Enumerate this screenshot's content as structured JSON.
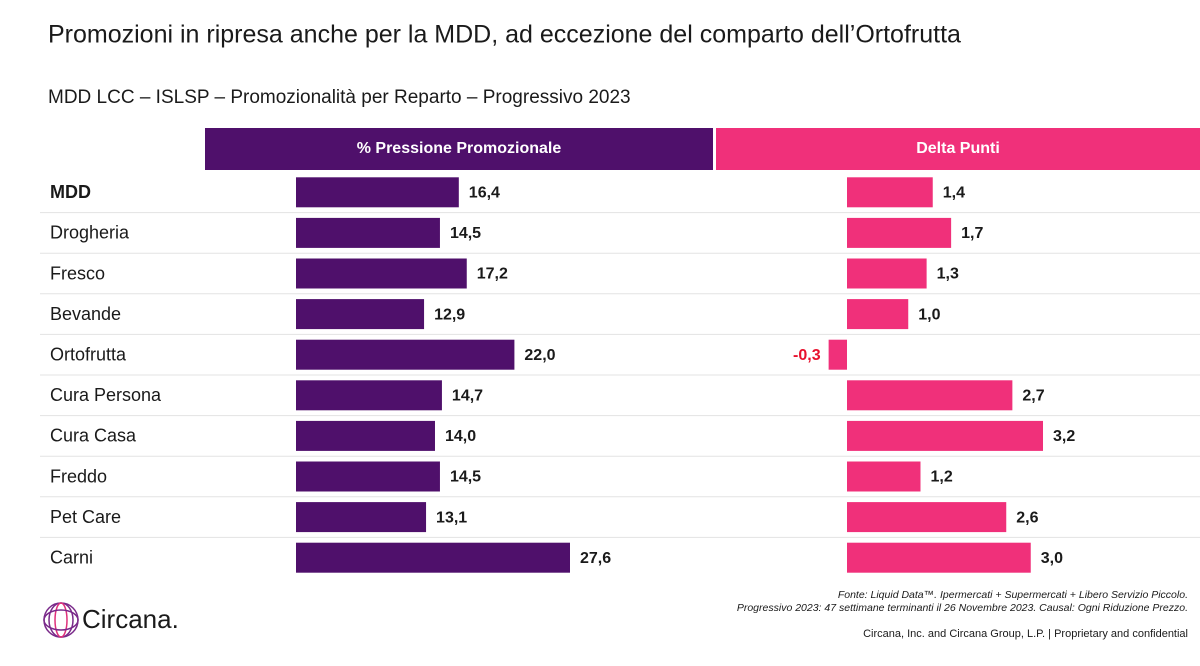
{
  "chart_data": {
    "type": "bar",
    "orientation": "horizontal",
    "title": "Promozioni in ripresa anche per la MDD, ad eccezione del comparto dell’Ortofrutta",
    "subtitle": "MDD LCC – ISLSP – Promozionalità per Reparto – Progressivo 2023",
    "categories": [
      "MDD",
      "Drogheria",
      "Fresco",
      "Bevande",
      "Ortofrutta",
      "Cura Persona",
      "Cura Casa",
      "Freddo",
      "Pet Care",
      "Carni"
    ],
    "series": [
      {
        "name": "% Pressione Promozionale",
        "color": "#4f106b",
        "values": [
          16.4,
          14.5,
          17.2,
          12.9,
          22.0,
          14.7,
          14.0,
          14.5,
          13.1,
          27.6
        ],
        "value_labels": [
          "16,4",
          "14,5",
          "17,2",
          "12,9",
          "22,0",
          "14,7",
          "14,0",
          "14,5",
          "13,1",
          "27,6"
        ]
      },
      {
        "name": "Delta Punti",
        "color": "#f0307a",
        "negative_label_color": "#e8112d",
        "values": [
          1.4,
          1.7,
          1.3,
          1.0,
          -0.3,
          2.7,
          3.2,
          1.2,
          2.6,
          3.0
        ],
        "value_labels": [
          "1,4",
          "1,7",
          "1,3",
          "1,0",
          "-0,3",
          "2,7",
          "3,2",
          "1,2",
          "2,6",
          "3,0"
        ]
      }
    ],
    "source_notes": [
      "Fonte: Liquid Data™. Ipermercati + Supermercati + Libero Servizio Piccolo.",
      "Progressivo 2023: 47 settimane terminanti il 26 Novembre 2023. Causal: Ogni Riduzione Prezzo."
    ],
    "logo": "Circana.",
    "footer": "Circana, Inc. and Circana Group, L.P. |  Proprietary and confidential"
  }
}
